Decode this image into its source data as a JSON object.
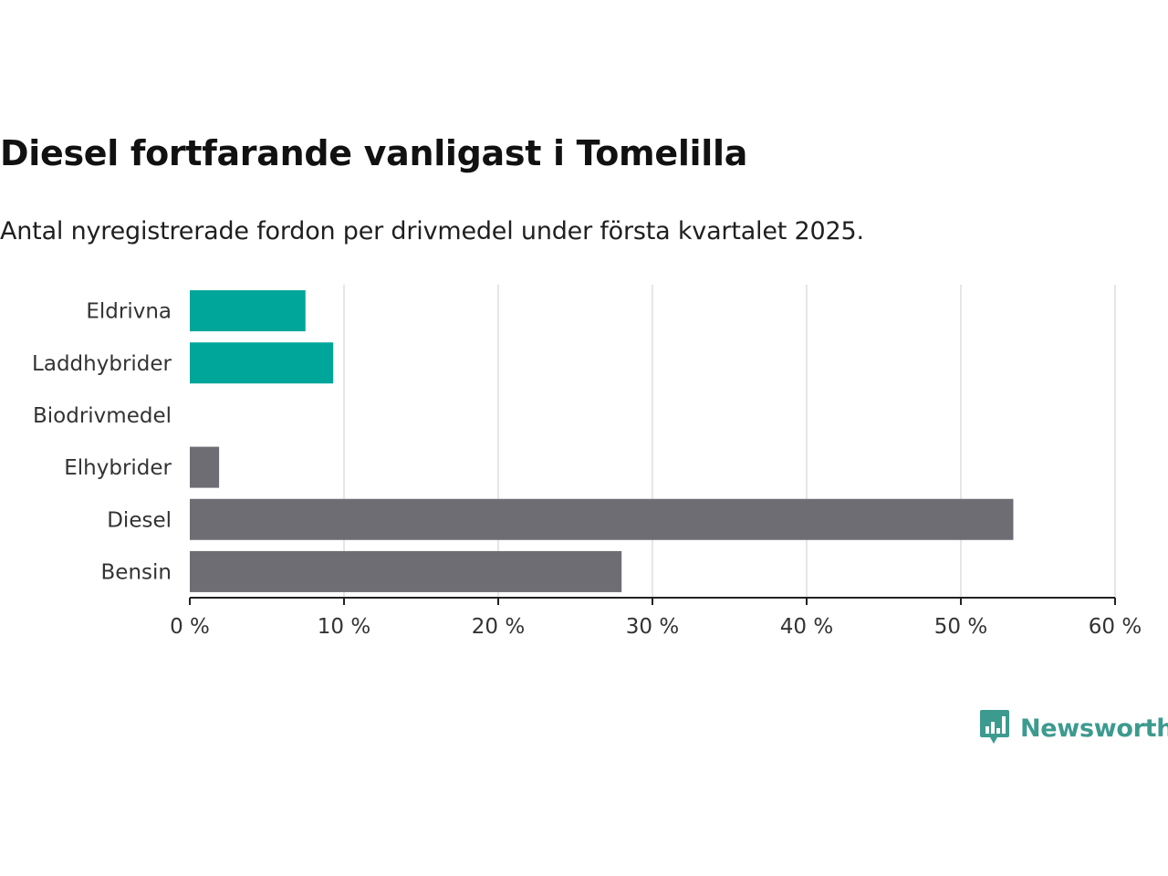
{
  "title": "Diesel fortfarande vanligast i Tomelilla",
  "subtitle": "Antal nyregistrerade fordon per drivmedel under första kvartalet 2025.",
  "brand": {
    "name": "Newsworthy",
    "logo_icon": "bar-chart-speech-bubble-icon"
  },
  "colors": {
    "highlight": "#00a69a",
    "default": "#6e6d73",
    "grid": "#dddddd",
    "axis": "#222222"
  },
  "chart_data": {
    "type": "bar",
    "orientation": "horizontal",
    "categories": [
      "Eldrivna",
      "Laddhybrider",
      "Biodrivmedel",
      "Elhybrider",
      "Diesel",
      "Bensin"
    ],
    "values": [
      7.5,
      9.3,
      0,
      1.9,
      53.4,
      28.0
    ],
    "highlight": [
      true,
      true,
      false,
      false,
      false,
      false
    ],
    "xlim": [
      0,
      60
    ],
    "xticks": [
      0,
      10,
      20,
      30,
      40,
      50,
      60
    ],
    "xtick_labels": [
      "0 %",
      "10 %",
      "20 %",
      "30 %",
      "40 %",
      "50 %",
      "60 %"
    ],
    "grid": true
  }
}
